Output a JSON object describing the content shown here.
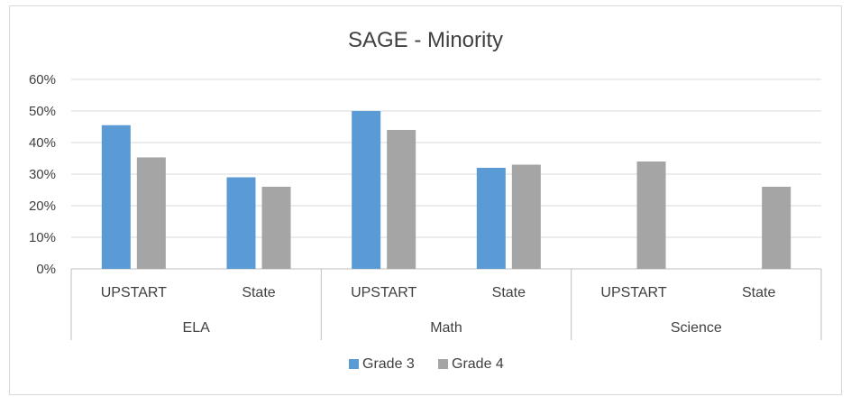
{
  "chart_data": {
    "type": "bar",
    "title": "SAGE - Minority",
    "xlabel": "",
    "ylabel": "",
    "ylim": [
      0,
      60
    ],
    "yticks": [
      "0%",
      "10%",
      "20%",
      "30%",
      "40%",
      "50%",
      "60%"
    ],
    "groups": [
      {
        "name": "ELA",
        "categories": [
          "UPSTART",
          "State"
        ]
      },
      {
        "name": "Math",
        "categories": [
          "UPSTART",
          "State"
        ]
      },
      {
        "name": "Science",
        "categories": [
          "UPSTART",
          "State"
        ]
      }
    ],
    "categories": [
      "UPSTART",
      "State",
      "UPSTART",
      "State",
      "UPSTART",
      "State"
    ],
    "series": [
      {
        "name": "Grade 3",
        "color": "#5b9bd5",
        "values": [
          45.5,
          29,
          50,
          32,
          null,
          null
        ]
      },
      {
        "name": "Grade 4",
        "color": "#a5a5a5",
        "values": [
          35.3,
          26,
          44,
          33,
          34,
          26
        ]
      }
    ],
    "grid": true,
    "legend_position": "bottom"
  }
}
